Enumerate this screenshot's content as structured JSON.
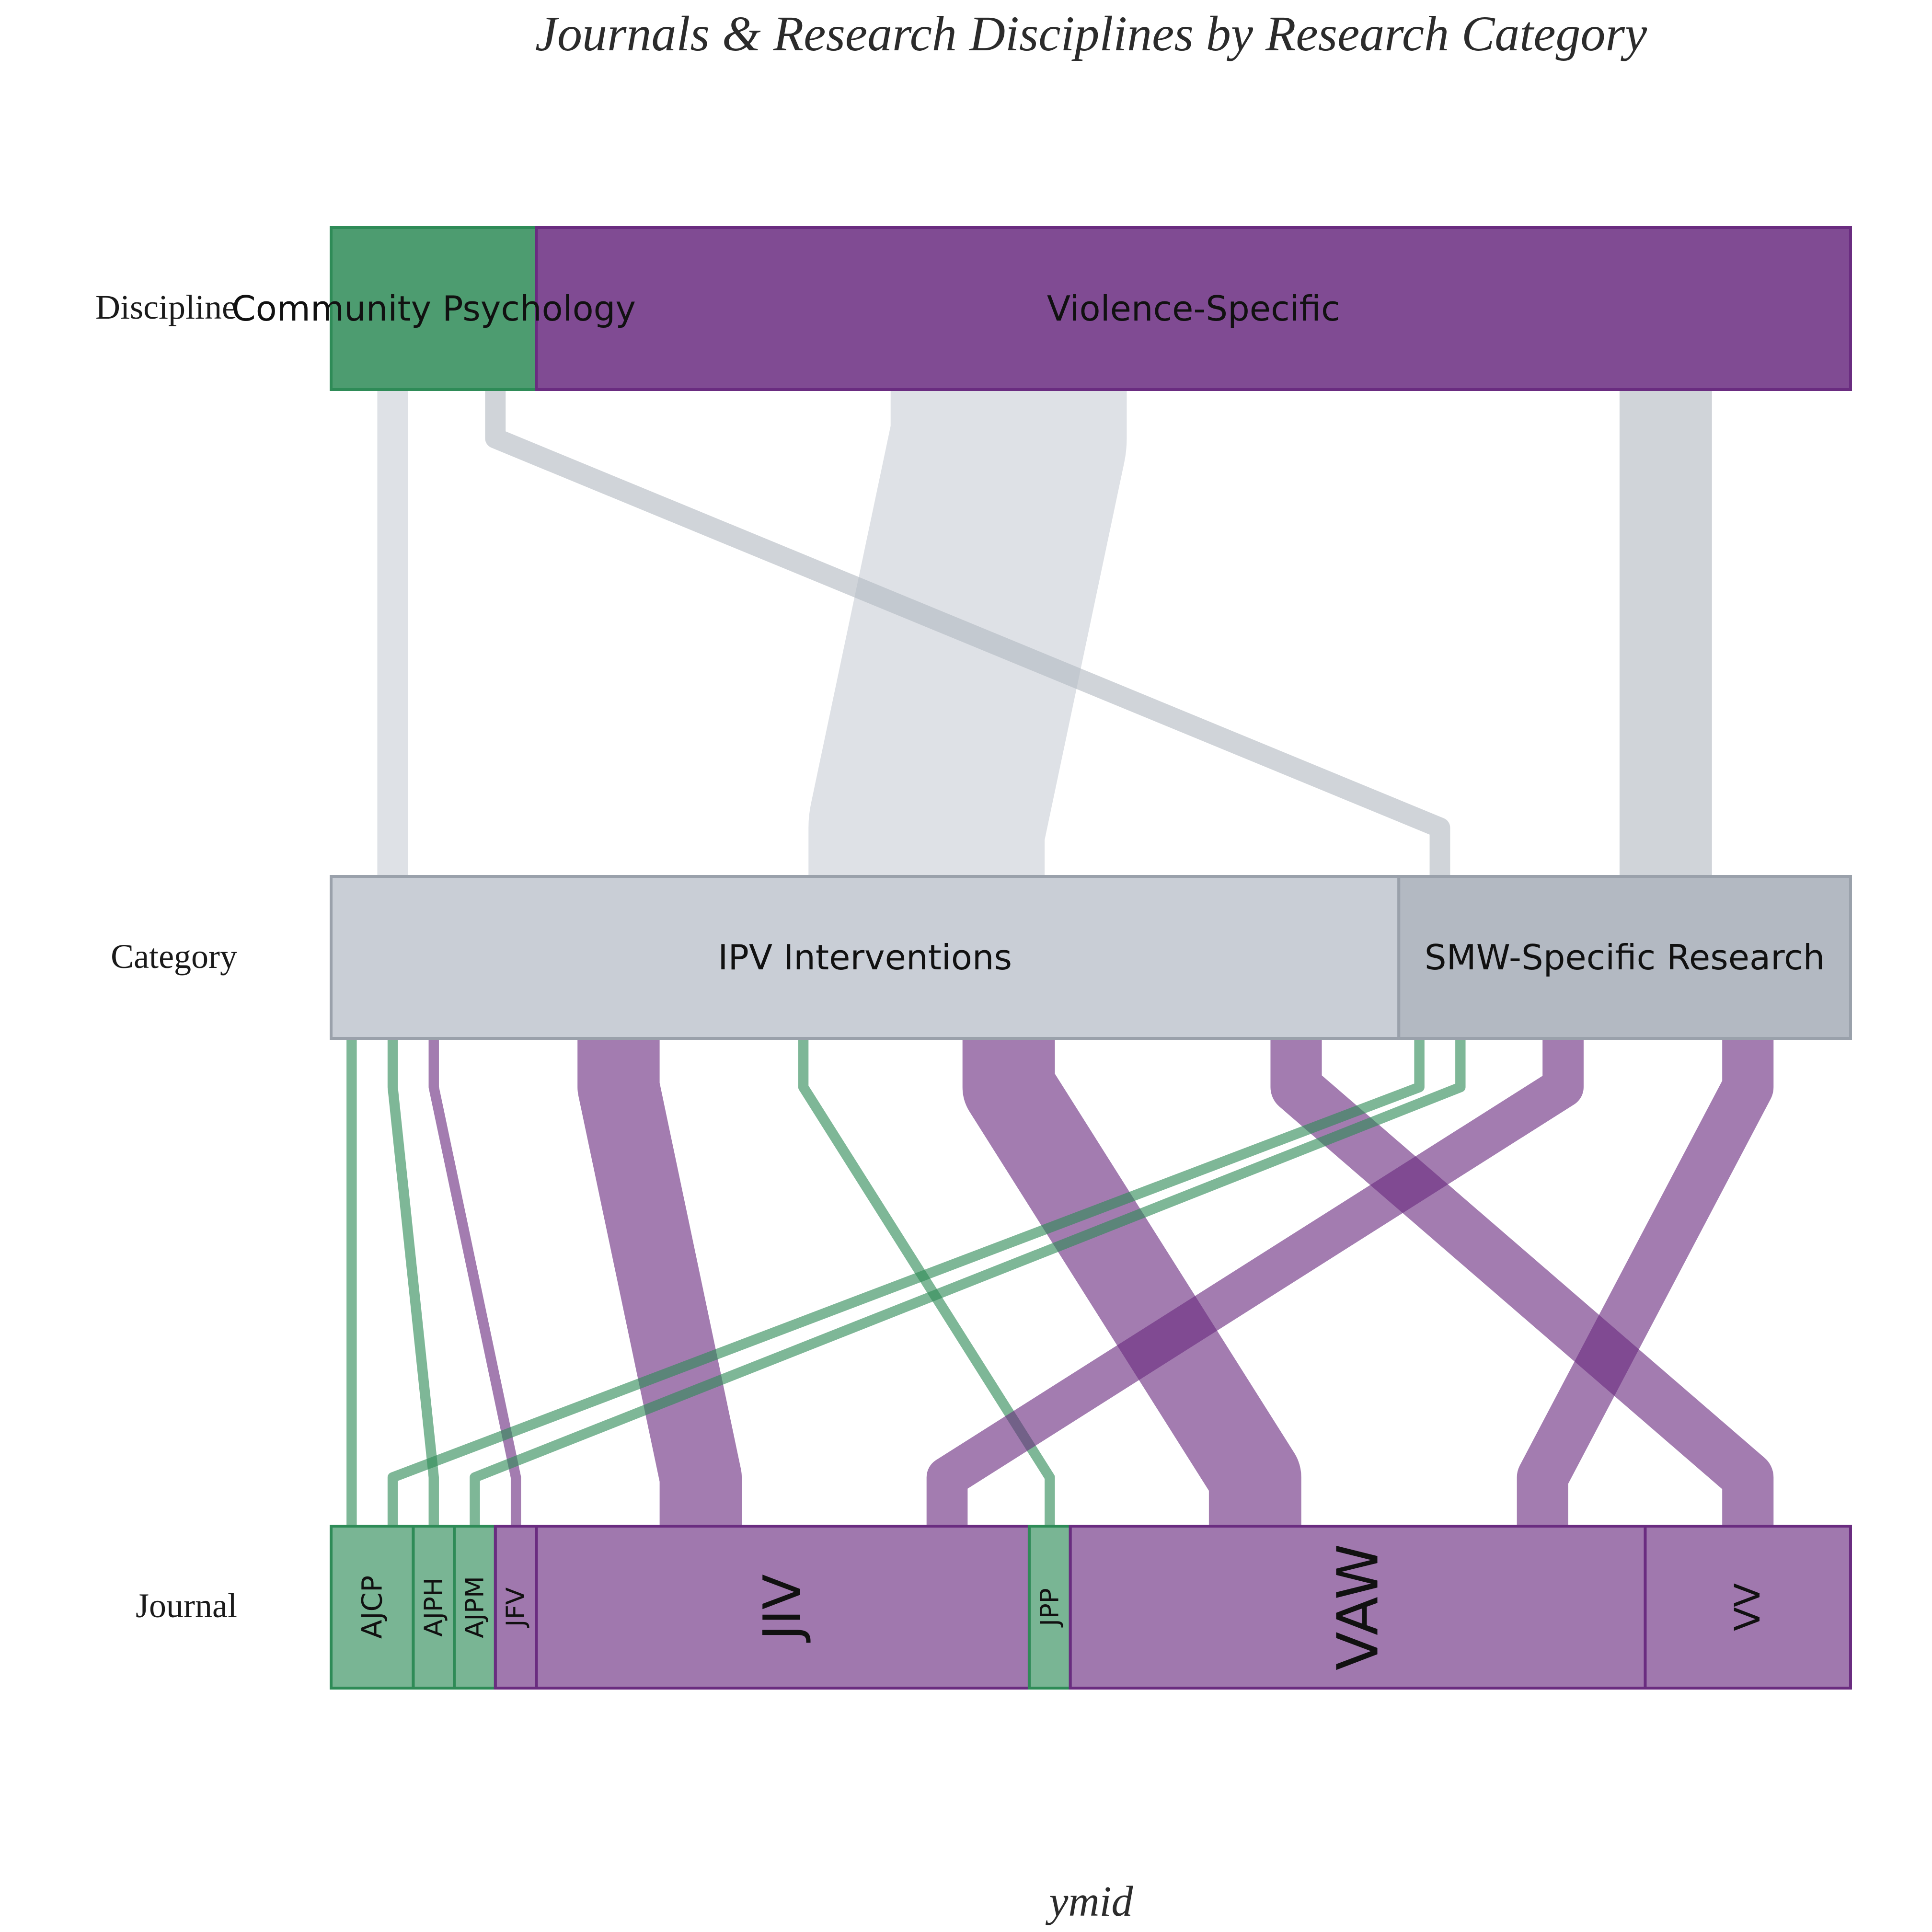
{
  "chart_data": {
    "type": "alluvial",
    "title": "Journals & Research Disciplines by Research Category",
    "xlabel": "ymid",
    "axes": [
      "Discipline",
      "Category",
      "Journal"
    ],
    "strata": {
      "Discipline": [
        "Community Psychology",
        "Violence-Specific"
      ],
      "Category": [
        "IPV Interventions",
        "SMW-Specific Research"
      ],
      "Journal": [
        "AJCP",
        "AJPH",
        "AJPM",
        "JFV",
        "JIV",
        "JPP",
        "VAW",
        "VV"
      ]
    },
    "journal_discipline": {
      "AJCP": "Community Psychology",
      "AJPH": "Community Psychology",
      "AJPM": "Community Psychology",
      "JFV": "Violence-Specific",
      "JIV": "Violence-Specific",
      "JPP": "Community Psychology",
      "VAW": "Violence-Specific",
      "VV": "Violence-Specific"
    },
    "flows": [
      {
        "discipline": "Community Psychology",
        "category": "IPV Interventions",
        "journal": "AJCP",
        "count": 1
      },
      {
        "discipline": "Community Psychology",
        "category": "IPV Interventions",
        "journal": "AJPH",
        "count": 1
      },
      {
        "discipline": "Violence-Specific",
        "category": "IPV Interventions",
        "journal": "JFV",
        "count": 1
      },
      {
        "discipline": "Violence-Specific",
        "category": "IPV Interventions",
        "journal": "JIV",
        "count": 8
      },
      {
        "discipline": "Community Psychology",
        "category": "IPV Interventions",
        "journal": "JPP",
        "count": 1
      },
      {
        "discipline": "Violence-Specific",
        "category": "IPV Interventions",
        "journal": "VAW",
        "count": 9
      },
      {
        "discipline": "Violence-Specific",
        "category": "IPV Interventions",
        "journal": "VV",
        "count": 5
      },
      {
        "discipline": "Community Psychology",
        "category": "SMW-Specific Research",
        "journal": "AJCP",
        "count": 1
      },
      {
        "discipline": "Community Psychology",
        "category": "SMW-Specific Research",
        "journal": "AJPM",
        "count": 1
      },
      {
        "discipline": "Violence-Specific",
        "category": "SMW-Specific Research",
        "journal": "JIV",
        "count": 4
      },
      {
        "discipline": "Violence-Specific",
        "category": "SMW-Specific Research",
        "journal": "VAW",
        "count": 5
      }
    ],
    "colors": {
      "Community Psychology": "#2e8b57",
      "Violence-Specific": "#6a2c80",
      "IPV Interventions": "#c9ced6",
      "SMW-Specific Research": "#b3b9c2",
      "text": "#2b2b2b"
    }
  }
}
